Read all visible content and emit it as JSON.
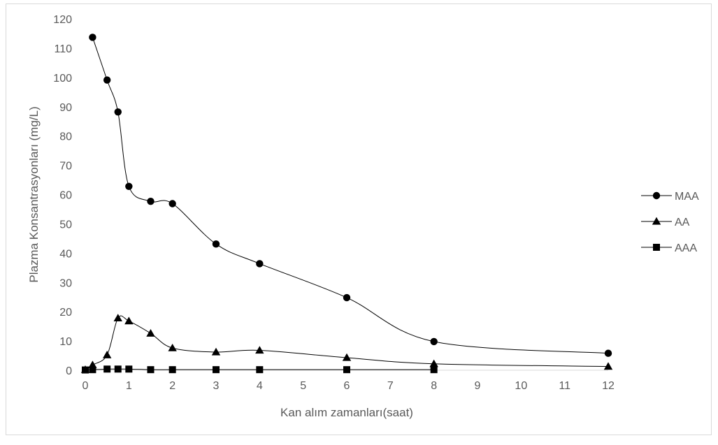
{
  "chart_data": {
    "type": "line",
    "title": "",
    "xlabel": "Kan alım zamanları(saat)",
    "ylabel": "Plazma Konsantrasyonları (mg/L)",
    "xlim": [
      0,
      12
    ],
    "ylim": [
      0,
      120
    ],
    "x_ticks": [
      "0",
      "1",
      "2",
      "3",
      "4",
      "5",
      "6",
      "7",
      "8",
      "9",
      "10",
      "11",
      "12"
    ],
    "y_ticks": [
      "0",
      "10",
      "20",
      "30",
      "40",
      "50",
      "60",
      "70",
      "80",
      "90",
      "100",
      "110",
      "120"
    ],
    "grid": false,
    "smooth": true,
    "legend_position": "right",
    "series": [
      {
        "name": "MAA",
        "marker": "circle",
        "color": "#000000",
        "x": [
          0.167,
          0.5,
          0.75,
          1,
          1.5,
          2,
          3,
          4,
          6,
          8,
          12
        ],
        "y": [
          113.7,
          99.1,
          88.2,
          62.8,
          57.7,
          56.9,
          43.1,
          36.4,
          24.8,
          9.8,
          5.8
        ]
      },
      {
        "name": "AA",
        "marker": "triangle",
        "color": "#000000",
        "x": [
          0,
          0.167,
          0.5,
          0.75,
          1,
          1.5,
          2,
          3,
          4,
          6,
          8,
          12
        ],
        "y": [
          0.2,
          1.8,
          5.2,
          17.8,
          16.8,
          12.6,
          7.6,
          6.2,
          6.8,
          4.3,
          2.2,
          1.3
        ]
      },
      {
        "name": "AAA",
        "marker": "square",
        "color": "#000000",
        "x": [
          0,
          0.167,
          0.5,
          0.75,
          1,
          1.5,
          2,
          3,
          4,
          6,
          8
        ],
        "y": [
          0.1,
          0.2,
          0.4,
          0.4,
          0.4,
          0.2,
          0.2,
          0.2,
          0.2,
          0.2,
          0.2
        ]
      }
    ]
  }
}
